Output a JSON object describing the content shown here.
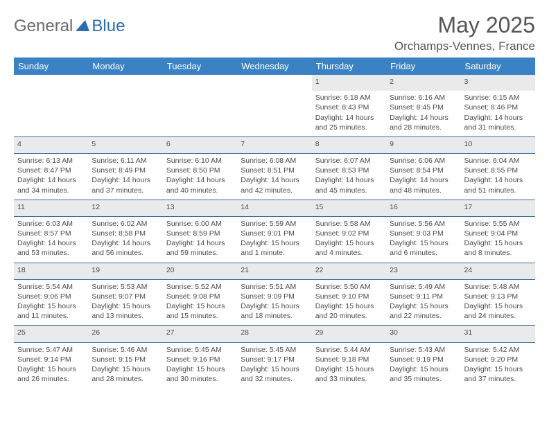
{
  "brand": {
    "part1": "General",
    "part2": "Blue"
  },
  "title": {
    "month": "May 2025",
    "location": "Orchamps-Vennes, France"
  },
  "colors": {
    "header_bg": "#3b82c4",
    "header_text": "#ffffff",
    "daynum_bg": "#e9eaeb",
    "border": "#3b6fa0",
    "text": "#4a4a4a",
    "brand_gray": "#6b6b6b",
    "brand_blue": "#2a6db3"
  },
  "weekdays": [
    "Sunday",
    "Monday",
    "Tuesday",
    "Wednesday",
    "Thursday",
    "Friday",
    "Saturday"
  ],
  "weeks": [
    {
      "nums": [
        "",
        "",
        "",
        "",
        "1",
        "2",
        "3"
      ],
      "cells": [
        null,
        null,
        null,
        null,
        {
          "sunrise": "6:18 AM",
          "sunset": "8:43 PM",
          "daylight": "14 hours and 25 minutes."
        },
        {
          "sunrise": "6:16 AM",
          "sunset": "8:45 PM",
          "daylight": "14 hours and 28 minutes."
        },
        {
          "sunrise": "6:15 AM",
          "sunset": "8:46 PM",
          "daylight": "14 hours and 31 minutes."
        }
      ]
    },
    {
      "nums": [
        "4",
        "5",
        "6",
        "7",
        "8",
        "9",
        "10"
      ],
      "cells": [
        {
          "sunrise": "6:13 AM",
          "sunset": "8:47 PM",
          "daylight": "14 hours and 34 minutes."
        },
        {
          "sunrise": "6:11 AM",
          "sunset": "8:49 PM",
          "daylight": "14 hours and 37 minutes."
        },
        {
          "sunrise": "6:10 AM",
          "sunset": "8:50 PM",
          "daylight": "14 hours and 40 minutes."
        },
        {
          "sunrise": "6:08 AM",
          "sunset": "8:51 PM",
          "daylight": "14 hours and 42 minutes."
        },
        {
          "sunrise": "6:07 AM",
          "sunset": "8:53 PM",
          "daylight": "14 hours and 45 minutes."
        },
        {
          "sunrise": "6:06 AM",
          "sunset": "8:54 PM",
          "daylight": "14 hours and 48 minutes."
        },
        {
          "sunrise": "6:04 AM",
          "sunset": "8:55 PM",
          "daylight": "14 hours and 51 minutes."
        }
      ]
    },
    {
      "nums": [
        "11",
        "12",
        "13",
        "14",
        "15",
        "16",
        "17"
      ],
      "cells": [
        {
          "sunrise": "6:03 AM",
          "sunset": "8:57 PM",
          "daylight": "14 hours and 53 minutes."
        },
        {
          "sunrise": "6:02 AM",
          "sunset": "8:58 PM",
          "daylight": "14 hours and 56 minutes."
        },
        {
          "sunrise": "6:00 AM",
          "sunset": "8:59 PM",
          "daylight": "14 hours and 59 minutes."
        },
        {
          "sunrise": "5:59 AM",
          "sunset": "9:01 PM",
          "daylight": "15 hours and 1 minute."
        },
        {
          "sunrise": "5:58 AM",
          "sunset": "9:02 PM",
          "daylight": "15 hours and 4 minutes."
        },
        {
          "sunrise": "5:56 AM",
          "sunset": "9:03 PM",
          "daylight": "15 hours and 6 minutes."
        },
        {
          "sunrise": "5:55 AM",
          "sunset": "9:04 PM",
          "daylight": "15 hours and 8 minutes."
        }
      ]
    },
    {
      "nums": [
        "18",
        "19",
        "20",
        "21",
        "22",
        "23",
        "24"
      ],
      "cells": [
        {
          "sunrise": "5:54 AM",
          "sunset": "9:06 PM",
          "daylight": "15 hours and 11 minutes."
        },
        {
          "sunrise": "5:53 AM",
          "sunset": "9:07 PM",
          "daylight": "15 hours and 13 minutes."
        },
        {
          "sunrise": "5:52 AM",
          "sunset": "9:08 PM",
          "daylight": "15 hours and 15 minutes."
        },
        {
          "sunrise": "5:51 AM",
          "sunset": "9:09 PM",
          "daylight": "15 hours and 18 minutes."
        },
        {
          "sunrise": "5:50 AM",
          "sunset": "9:10 PM",
          "daylight": "15 hours and 20 minutes."
        },
        {
          "sunrise": "5:49 AM",
          "sunset": "9:11 PM",
          "daylight": "15 hours and 22 minutes."
        },
        {
          "sunrise": "5:48 AM",
          "sunset": "9:13 PM",
          "daylight": "15 hours and 24 minutes."
        }
      ]
    },
    {
      "nums": [
        "25",
        "26",
        "27",
        "28",
        "29",
        "30",
        "31"
      ],
      "cells": [
        {
          "sunrise": "5:47 AM",
          "sunset": "9:14 PM",
          "daylight": "15 hours and 26 minutes."
        },
        {
          "sunrise": "5:46 AM",
          "sunset": "9:15 PM",
          "daylight": "15 hours and 28 minutes."
        },
        {
          "sunrise": "5:45 AM",
          "sunset": "9:16 PM",
          "daylight": "15 hours and 30 minutes."
        },
        {
          "sunrise": "5:45 AM",
          "sunset": "9:17 PM",
          "daylight": "15 hours and 32 minutes."
        },
        {
          "sunrise": "5:44 AM",
          "sunset": "9:18 PM",
          "daylight": "15 hours and 33 minutes."
        },
        {
          "sunrise": "5:43 AM",
          "sunset": "9:19 PM",
          "daylight": "15 hours and 35 minutes."
        },
        {
          "sunrise": "5:42 AM",
          "sunset": "9:20 PM",
          "daylight": "15 hours and 37 minutes."
        }
      ]
    }
  ]
}
